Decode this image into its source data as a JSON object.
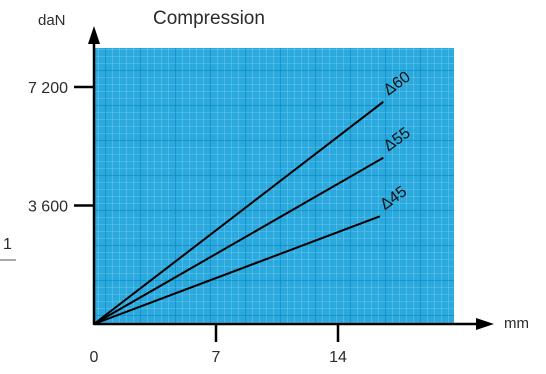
{
  "chart_data": {
    "type": "line",
    "title": "Compression",
    "xlabel": "mm",
    "ylabel": "daN",
    "xlim": [
      0,
      28
    ],
    "ylim": [
      0,
      9400
    ],
    "x_ticks": [
      {
        "value": 0,
        "label": "0"
      },
      {
        "value": 7,
        "label": "7"
      },
      {
        "value": 14,
        "label": "14"
      }
    ],
    "y_ticks": [
      {
        "value": 3600,
        "label": "3 600"
      },
      {
        "value": 7200,
        "label": "7 200"
      }
    ],
    "grid": true,
    "grid_color": "#2aa9de",
    "background_color": "#2aa9de",
    "line_color": "#000000",
    "series": [
      {
        "name": "Δ60",
        "x": [
          0,
          16.6
        ],
        "y": [
          0,
          6750
        ]
      },
      {
        "name": "Δ55",
        "x": [
          0,
          16.6
        ],
        "y": [
          0,
          5050
        ]
      },
      {
        "name": "Δ45",
        "x": [
          0,
          16.4
        ],
        "y": [
          0,
          3270
        ]
      }
    ],
    "side_marker": "1"
  }
}
